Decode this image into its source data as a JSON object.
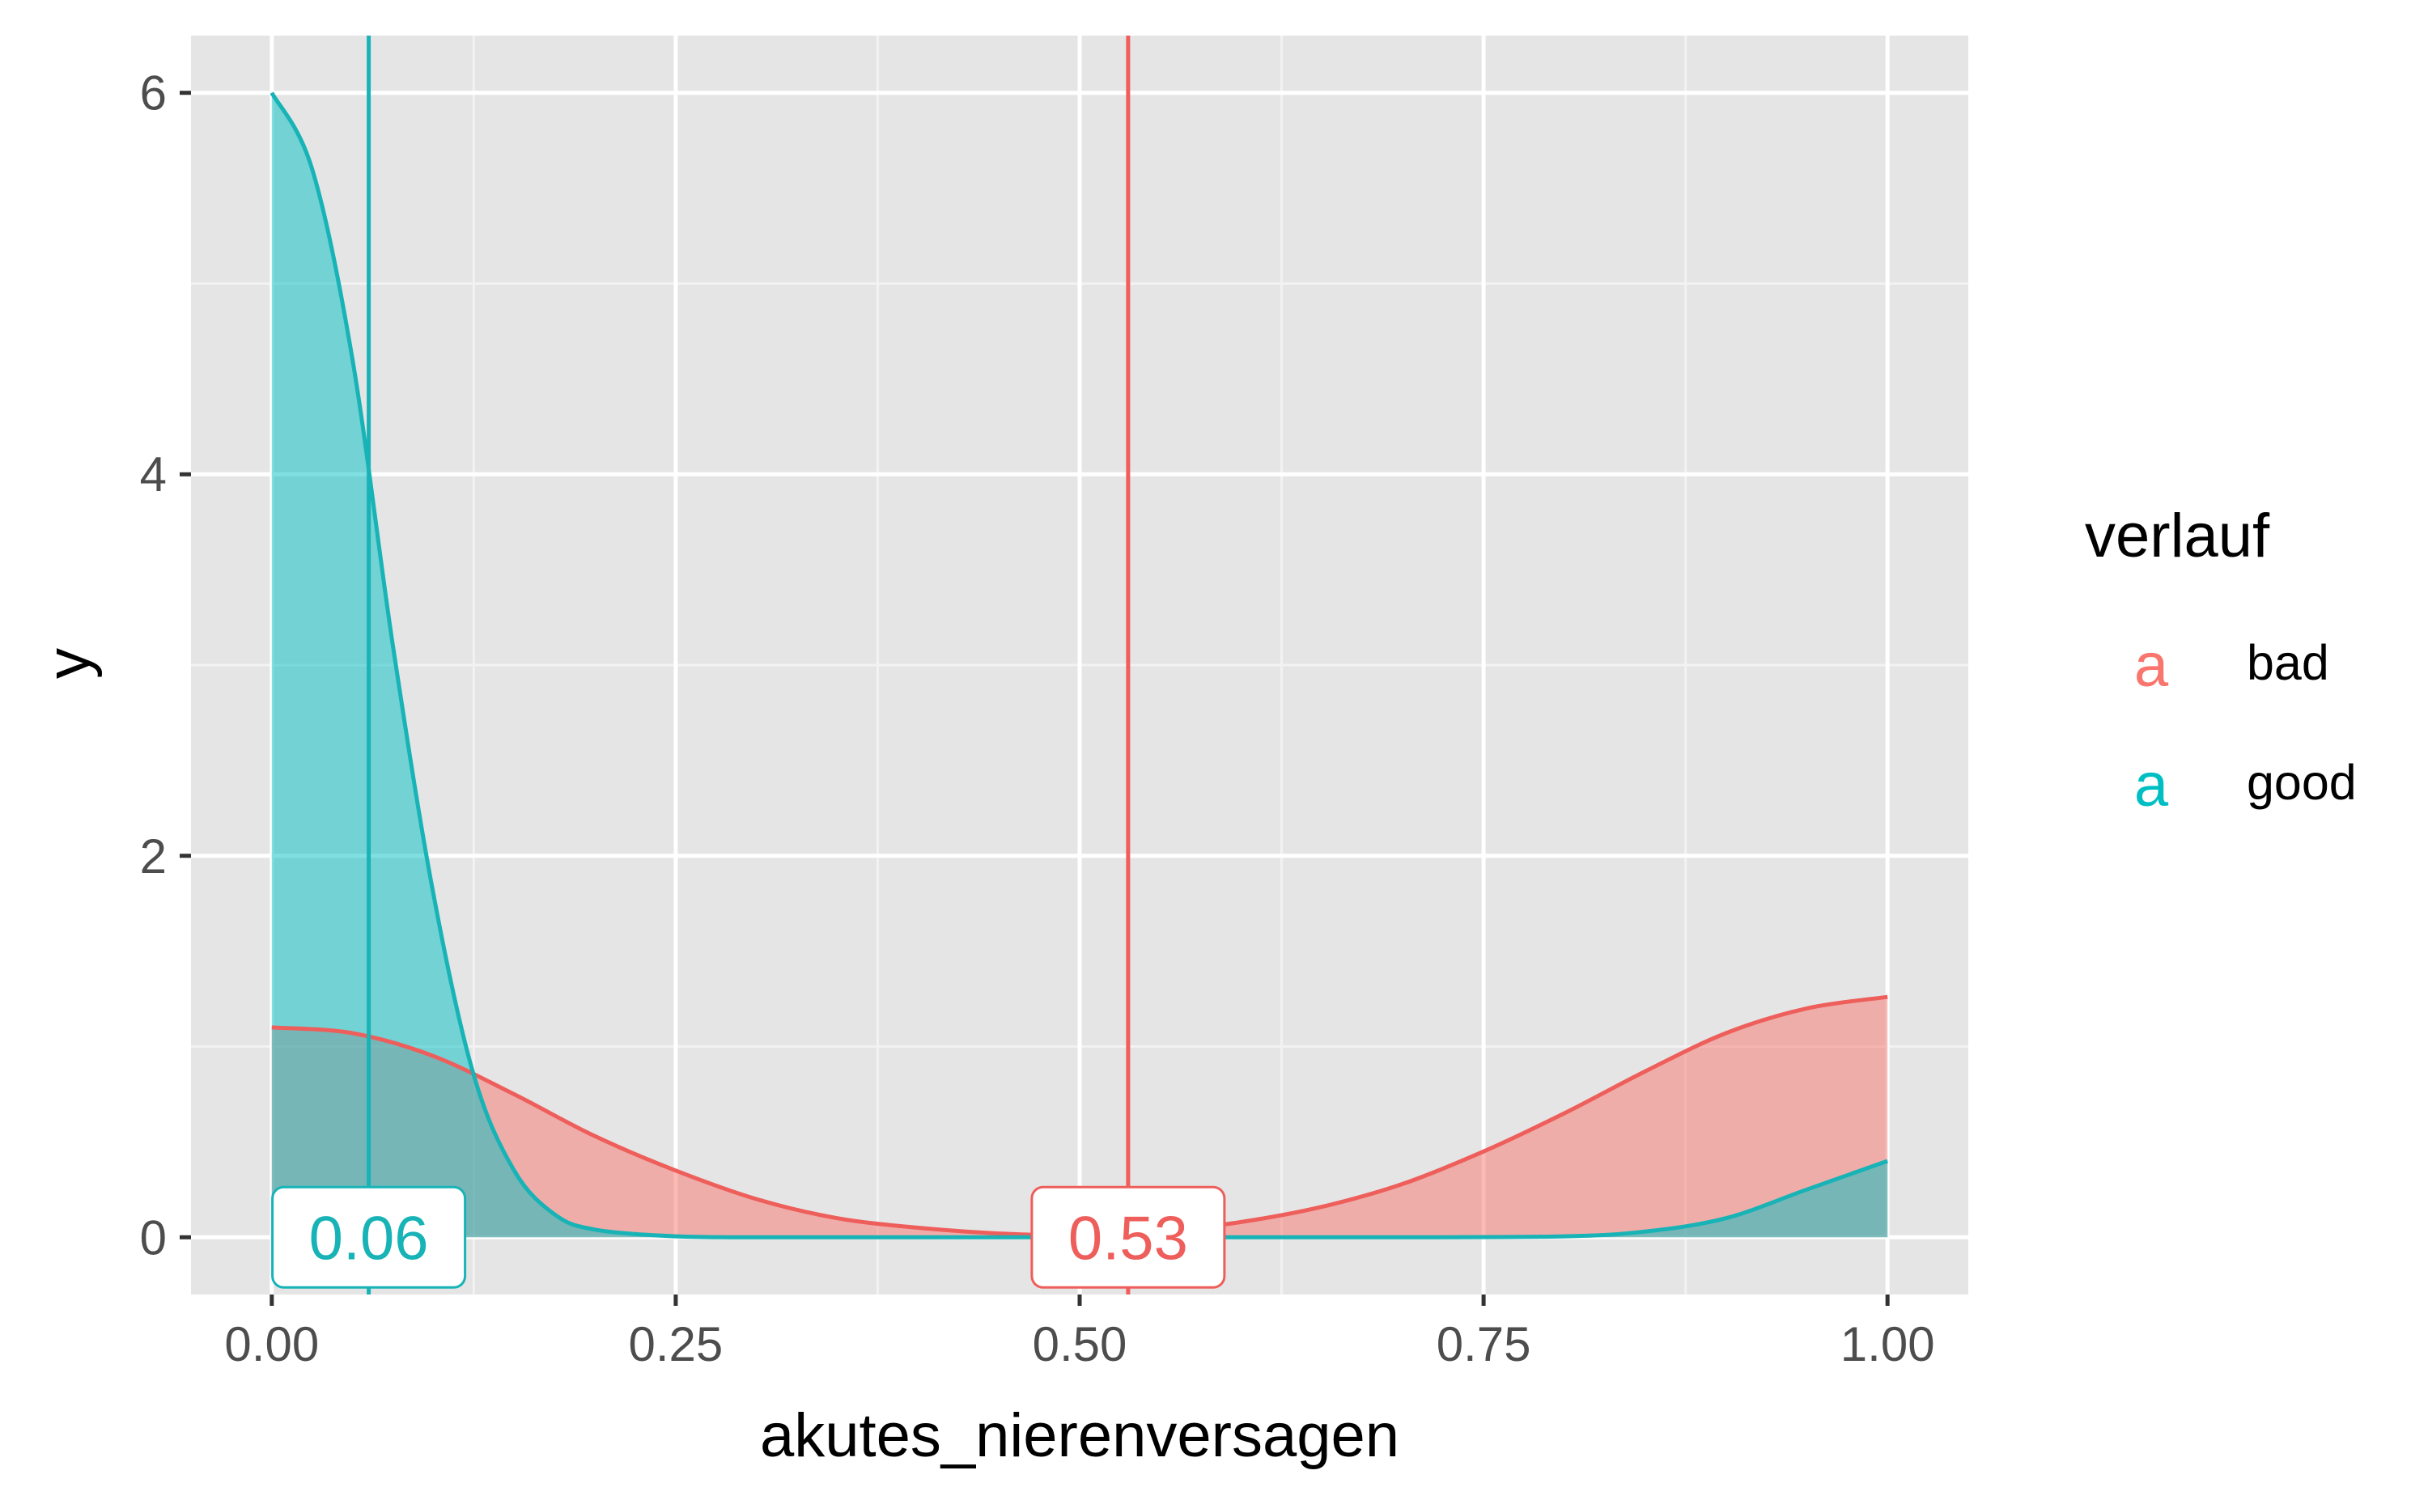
{
  "chart_data": {
    "type": "area",
    "xlabel": "akutes_nierenversagen",
    "ylabel": "y",
    "xlim": [
      -0.05,
      1.05
    ],
    "ylim": [
      -0.3,
      6.3
    ],
    "x_ticks": [
      0,
      0.25,
      0.5,
      0.75,
      1
    ],
    "x_tick_labels": [
      "0.00",
      "0.25",
      "0.50",
      "0.75",
      "1.00"
    ],
    "y_ticks": [
      0,
      2,
      4,
      6
    ],
    "y_tick_labels": [
      "0",
      "2",
      "4",
      "6"
    ],
    "grid": true,
    "legend": {
      "title": "verlauf",
      "position": "right",
      "key_glyph": "a",
      "items": [
        {
          "label": "bad",
          "color": "#F8766D"
        },
        {
          "label": "good",
          "color": "#00BFC4"
        }
      ]
    },
    "series": [
      {
        "name": "bad",
        "color": "#F8766D",
        "line_color": "#ee5e5b",
        "x": [
          0,
          0.05,
          0.1,
          0.15,
          0.2,
          0.25,
          0.3,
          0.35,
          0.4,
          0.45,
          0.5,
          0.55,
          0.6,
          0.65,
          0.7,
          0.75,
          0.8,
          0.85,
          0.9,
          0.95,
          1.0
        ],
        "y": [
          1.1,
          1.07,
          0.95,
          0.75,
          0.53,
          0.35,
          0.2,
          0.1,
          0.05,
          0.02,
          0.01,
          0.03,
          0.08,
          0.16,
          0.28,
          0.45,
          0.65,
          0.87,
          1.07,
          1.2,
          1.26
        ],
        "mean": 0.53,
        "mean_label": "0.53"
      },
      {
        "name": "good",
        "color": "#00BFC4",
        "line_color": "#18b3b6",
        "x": [
          0,
          0.025,
          0.05,
          0.075,
          0.1,
          0.125,
          0.15,
          0.175,
          0.2,
          0.25,
          0.3,
          0.4,
          0.5,
          0.6,
          0.7,
          0.8,
          0.85,
          0.9,
          0.95,
          1.0
        ],
        "y": [
          6.0,
          5.6,
          4.6,
          3.1,
          1.8,
          0.85,
          0.35,
          0.12,
          0.04,
          0.005,
          0,
          0,
          0,
          0,
          0,
          0.005,
          0.03,
          0.1,
          0.25,
          0.4
        ],
        "mean": 0.06,
        "mean_label": "0.06"
      }
    ]
  }
}
